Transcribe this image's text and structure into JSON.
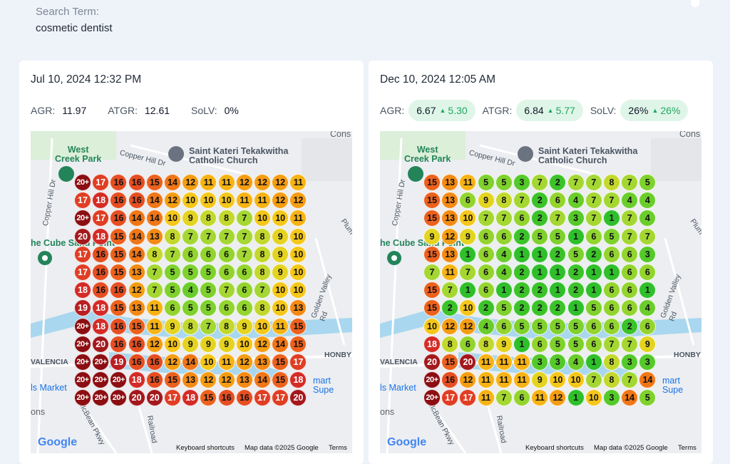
{
  "search": {
    "label": "Search Term:",
    "value": "cosmetic dentist"
  },
  "map_labels": {
    "park": "West\nCreek Park",
    "church": "Saint Kateri Tekakwitha\nCatholic Church",
    "cons": "Cons",
    "copper_hill_dr": "Copper Hill Dr",
    "copper_hill_dr_vert": "Copper Hill Dr",
    "cube": "he Cube Sand Point",
    "golden_valley": "Golden Valley Rd",
    "plum": "Plum",
    "honby": "HONBY",
    "valencia": "VALENCIA",
    "mart": "mart Supe",
    "ls_market": "ls Market",
    "ons": "ons",
    "mcbean": "McBean Pkwy",
    "railroad": "Railroad",
    "google": "Google",
    "keyboard": "Keyboard shortcuts",
    "mapdata": "Map data ©2025 Google",
    "terms": "Terms"
  },
  "left": {
    "date": "Jul 10, 2024 12:32 PM",
    "metrics": {
      "agr_label": "AGR:",
      "agr": "11.97",
      "atgr_label": "ATGR:",
      "atgr": "12.61",
      "solv_label": "SoLV:",
      "solv": "0%"
    },
    "grid": [
      [
        "20+",
        "17",
        "16",
        "16",
        "15",
        "14",
        "12",
        "11",
        "11",
        "12",
        "12",
        "12",
        "11"
      ],
      [
        "17",
        "18",
        "16",
        "16",
        "14",
        "12",
        "10",
        "10",
        "10",
        "11",
        "11",
        "12",
        "12"
      ],
      [
        "20+",
        "17",
        "16",
        "14",
        "14",
        "10",
        "9",
        "8",
        "8",
        "7",
        "10",
        "10",
        "11"
      ],
      [
        "20",
        "18",
        "15",
        "14",
        "13",
        "8",
        "7",
        "7",
        "7",
        "7",
        "8",
        "9",
        "10"
      ],
      [
        "17",
        "16",
        "15",
        "14",
        "8",
        "7",
        "6",
        "6",
        "6",
        "7",
        "8",
        "9",
        "10"
      ],
      [
        "17",
        "16",
        "15",
        "13",
        "7",
        "5",
        "5",
        "5",
        "6",
        "6",
        "8",
        "9",
        "10"
      ],
      [
        "18",
        "16",
        "16",
        "12",
        "7",
        "5",
        "4",
        "5",
        "7",
        "6",
        "7",
        "10",
        "10"
      ],
      [
        "19",
        "18",
        "15",
        "13",
        "11",
        "6",
        "5",
        "5",
        "6",
        "6",
        "8",
        "10",
        "13"
      ],
      [
        "20+",
        "18",
        "16",
        "15",
        "11",
        "9",
        "8",
        "7",
        "8",
        "9",
        "10",
        "11",
        "15"
      ],
      [
        "20+",
        "20",
        "16",
        "16",
        "12",
        "10",
        "9",
        "9",
        "9",
        "10",
        "12",
        "14",
        "15"
      ],
      [
        "20+",
        "20+",
        "19",
        "16",
        "16",
        "12",
        "14",
        "10",
        "11",
        "12",
        "13",
        "15",
        "17"
      ],
      [
        "20+",
        "20+",
        "20+",
        "18",
        "16",
        "15",
        "13",
        "12",
        "12",
        "13",
        "14",
        "15",
        "18"
      ],
      [
        "20+",
        "20+",
        "20+",
        "20",
        "20",
        "17",
        "18",
        "15",
        "16",
        "16",
        "17",
        "17",
        "20"
      ]
    ]
  },
  "right": {
    "date": "Dec 10, 2024 12:05 AM",
    "metrics": {
      "agr_label": "AGR:",
      "agr": "6.67",
      "agr_delta": "5.30",
      "atgr_label": "ATGR:",
      "atgr": "6.84",
      "atgr_delta": "5.77",
      "solv_label": "SoLV:",
      "solv": "26%",
      "solv_delta": "26%"
    },
    "grid": [
      [
        "15",
        "13",
        "11",
        "5",
        "5",
        "3",
        "7",
        "2",
        "7",
        "7",
        "8",
        "7",
        "5"
      ],
      [
        "15",
        "13",
        "6",
        "9",
        "8",
        "7",
        "2",
        "6",
        "4",
        "7",
        "7",
        "4",
        "4"
      ],
      [
        "15",
        "13",
        "10",
        "7",
        "7",
        "6",
        "2",
        "7",
        "3",
        "7",
        "1",
        "7",
        "4"
      ],
      [
        "9",
        "12",
        "9",
        "6",
        "6",
        "2",
        "5",
        "5",
        "1",
        "6",
        "5",
        "7",
        "7"
      ],
      [
        "15",
        "13",
        "1",
        "6",
        "4",
        "1",
        "1",
        "2",
        "5",
        "2",
        "6",
        "6",
        "3"
      ],
      [
        "7",
        "11",
        "7",
        "6",
        "4",
        "2",
        "1",
        "1",
        "2",
        "1",
        "1",
        "6",
        "6"
      ],
      [
        "15",
        "7",
        "1",
        "6",
        "1",
        "2",
        "2",
        "1",
        "2",
        "1",
        "6",
        "6",
        "1"
      ],
      [
        "15",
        "2",
        "10",
        "2",
        "5",
        "2",
        "2",
        "2",
        "1",
        "5",
        "6",
        "6",
        "4"
      ],
      [
        "10",
        "12",
        "12",
        "4",
        "6",
        "5",
        "5",
        "5",
        "5",
        "6",
        "6",
        "2",
        "6"
      ],
      [
        "18",
        "8",
        "6",
        "8",
        "9",
        "1",
        "6",
        "5",
        "5",
        "6",
        "7",
        "7",
        "9"
      ],
      [
        "20",
        "15",
        "20",
        "11",
        "11",
        "11",
        "3",
        "3",
        "4",
        "1",
        "8",
        "3",
        "3"
      ],
      [
        "20+",
        "16",
        "12",
        "11",
        "11",
        "11",
        "9",
        "10",
        "10",
        "7",
        "8",
        "7",
        "14"
      ],
      [
        "20+",
        "17",
        "17",
        "11",
        "7",
        "6",
        "11",
        "12",
        "1",
        "10",
        "3",
        "14",
        "5"
      ]
    ]
  },
  "rank_colors": {
    "1": "#2fbf2b",
    "2": "#3cc32a",
    "3": "#55c92a",
    "4": "#6acd2b",
    "5": "#7fd12d",
    "6": "#93d42f",
    "7": "#a5d733",
    "8": "#c3d82d",
    "9": "#e4d421",
    "10": "#f5c71a",
    "11": "#f7b315",
    "12": "#f59d12",
    "13": "#f48a14",
    "14": "#f07616",
    "15": "#ec611c",
    "16": "#e64e21",
    "17": "#e03e24",
    "18": "#d42b27",
    "19": "#b81f22",
    "20": "#a3181c",
    "20+": "#8c0e12"
  }
}
